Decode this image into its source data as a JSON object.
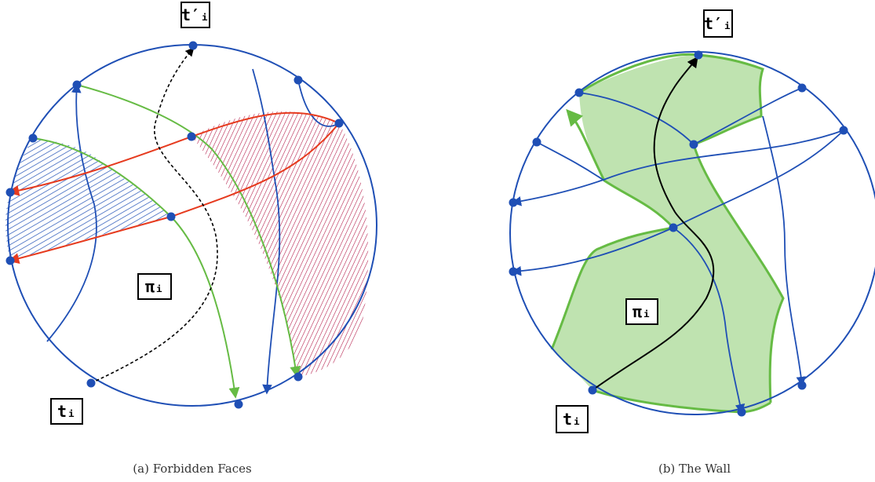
{
  "figures": [
    {
      "caption": "(a) Forbidden Faces",
      "labels": {
        "top": "t′ᵢ",
        "bottom": "tᵢ",
        "middle": "πᵢ"
      }
    },
    {
      "caption": "(b) The Wall",
      "labels": {
        "top": "t′ᵢ",
        "bottom": "tᵢ",
        "middle": "πᵢ"
      }
    }
  ],
  "colors": {
    "circle": "#1f4fb5",
    "node": "#1f4fb5",
    "green": "#66bb44",
    "red": "#e63b1f",
    "hatch_blue": "#1f4fb5",
    "hatch_red": "#b01040",
    "wall_fill": "#bfe3b0",
    "path": "#000000"
  }
}
